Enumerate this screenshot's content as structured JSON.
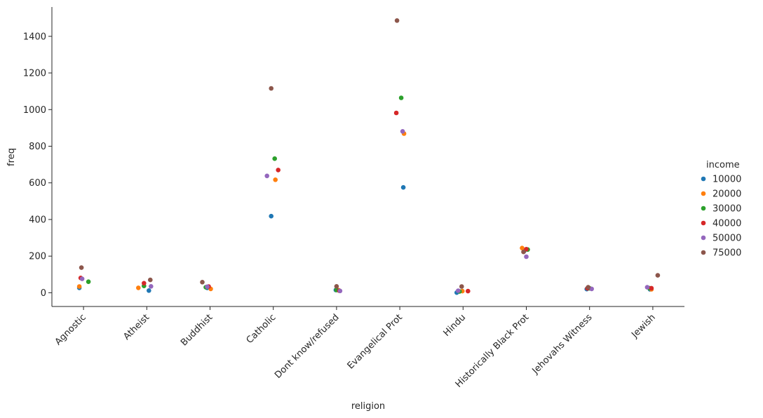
{
  "chart_data": {
    "type": "scatter",
    "title": "",
    "xlabel": "religion",
    "ylabel": "freq",
    "ylim": [
      -75,
      1560
    ],
    "yticks": [
      0,
      200,
      400,
      600,
      800,
      1000,
      1200,
      1400
    ],
    "grid": false,
    "legend_placement": "right",
    "legend_title": "income",
    "categories": [
      "Agnostic",
      "Atheist",
      "Buddhist",
      "Catholic",
      "Dont know/refused",
      "Evangelical Prot",
      "Hindu",
      "Historically Black Prot",
      "Jehovahs Witness",
      "Jewish"
    ],
    "series": [
      {
        "name": " 10000",
        "color": "#1f77b4",
        "values": [
          27,
          12,
          27,
          418,
          15,
          575,
          1,
          228,
          20,
          19
        ]
      },
      {
        "name": " 20000",
        "color": "#ff7f0e",
        "values": [
          34,
          27,
          21,
          617,
          14,
          869,
          9,
          244,
          27,
          19
        ]
      },
      {
        "name": " 30000",
        "color": "#2ca02c",
        "values": [
          60,
          37,
          30,
          732,
          15,
          1064,
          7,
          236,
          24,
          25
        ]
      },
      {
        "name": " 40000",
        "color": "#d62728",
        "values": [
          81,
          52,
          34,
          670,
          11,
          982,
          9,
          238,
          24,
          25
        ]
      },
      {
        "name": " 50000",
        "color": "#9467bd",
        "values": [
          76,
          35,
          33,
          638,
          10,
          881,
          11,
          197,
          21,
          30
        ]
      },
      {
        "name": " 75000",
        "color": "#8c564b",
        "values": [
          137,
          70,
          58,
          1116,
          35,
          1486,
          34,
          223,
          30,
          95
        ]
      }
    ]
  }
}
